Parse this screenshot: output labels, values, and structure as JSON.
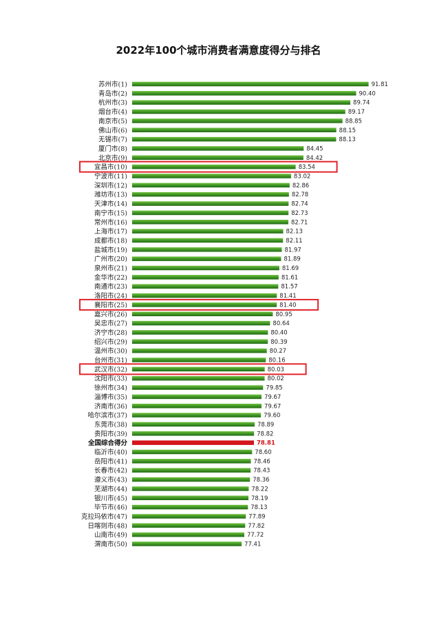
{
  "chart_data": {
    "type": "bar",
    "orientation": "horizontal",
    "title": "2022年100个城市消费者满意度得分与排名",
    "categories": [
      "苏州市(1)",
      "青岛市(2)",
      "杭州市(3)",
      "烟台市(4)",
      "南京市(5)",
      "佛山市(6)",
      "无锡市(7)",
      "厦门市(8)",
      "北京市(9)",
      "宜昌市(10)",
      "宁波市(11)",
      "深圳市(12)",
      "潍坊市(13)",
      "天津市(14)",
      "南宁市(15)",
      "常州市(16)",
      "上海市(17)",
      "成都市(18)",
      "盐城市(19)",
      "广州市(20)",
      "泉州市(21)",
      "金华市(22)",
      "南通市(23)",
      "洛阳市(24)",
      "襄阳市(25)",
      "嘉兴市(26)",
      "吴忠市(27)",
      "济宁市(28)",
      "绍兴市(29)",
      "温州市(30)",
      "台州市(31)",
      "武汉市(32)",
      "沈阳市(33)",
      "徐州市(34)",
      "淄博市(35)",
      "济南市(36)",
      "哈尔滨市(37)",
      "东莞市(38)",
      "贵阳市(39)",
      "全国综合得分",
      "临沂市(40)",
      "岳阳市(41)",
      "长春市(42)",
      "遵义市(43)",
      "芜湖市(44)",
      "银川市(45)",
      "毕节市(46)",
      "克拉玛依市(47)",
      "日喀则市(48)",
      "山南市(49)",
      "渭南市(50)"
    ],
    "values": [
      91.81,
      90.4,
      89.74,
      89.17,
      88.85,
      88.15,
      88.13,
      84.45,
      84.42,
      83.54,
      83.02,
      82.86,
      82.78,
      82.74,
      82.73,
      82.71,
      82.13,
      82.11,
      81.97,
      81.89,
      81.69,
      81.61,
      81.57,
      81.41,
      81.4,
      80.95,
      80.64,
      80.4,
      80.39,
      80.27,
      80.16,
      80.03,
      80.02,
      79.85,
      79.67,
      79.67,
      79.6,
      78.89,
      78.82,
      78.81,
      78.6,
      78.46,
      78.43,
      78.36,
      78.22,
      78.19,
      78.13,
      77.89,
      77.82,
      77.72,
      77.41
    ],
    "value_labels": [
      "91.81",
      "90.40",
      "89.74",
      "89.17",
      "88.85",
      "88.15",
      "88.13",
      "84.45",
      "84.42",
      "83.54",
      "83.02",
      "82.86",
      "82.78",
      "82.74",
      "82.73",
      "82.71",
      "82.13",
      "82.11",
      "81.97",
      "81.89",
      "81.69",
      "81.61",
      "81.57",
      "81.41",
      "81.40",
      "80.95",
      "80.64",
      "80.40",
      "80.39",
      "80.27",
      "80.16",
      "80.03",
      "80.02",
      "79.85",
      "79.67",
      "79.67",
      "79.60",
      "78.89",
      "78.82",
      "78.81",
      "78.60",
      "78.46",
      "78.43",
      "78.36",
      "78.22",
      "78.19",
      "78.13",
      "77.89",
      "77.82",
      "77.72",
      "77.41"
    ],
    "highlight_bar_index": 39,
    "boxed_indices": [
      9,
      24,
      31
    ],
    "xlim": [
      65,
      92
    ],
    "grid": false,
    "legend": "none",
    "colors": {
      "bar_top": "#6cc23c",
      "bar_bottom": "#1e6b12",
      "highlight_bar": "#d3161c",
      "highlight_text": "#d0141a",
      "box_outline": "#e0232b"
    }
  }
}
